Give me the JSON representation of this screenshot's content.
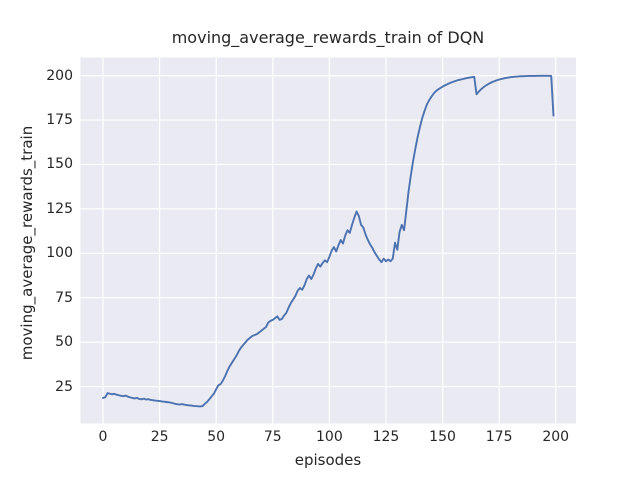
{
  "figure": {
    "title": "moving_average_rewards_train of DQN"
  },
  "colors": {
    "axes_background": "#eaeaf2",
    "grid": "#ffffff",
    "line": "#4c72b0",
    "text": "#262626",
    "figure_background": "#ffffff"
  },
  "chart_data": {
    "type": "line",
    "title": "moving_average_rewards_train of DQN",
    "xlabel": "episodes",
    "ylabel": "moving_average_rewards_train",
    "x_ticks": [
      0,
      25,
      50,
      75,
      100,
      125,
      150,
      175,
      200
    ],
    "y_ticks": [
      25,
      50,
      75,
      100,
      125,
      150,
      175,
      200
    ],
    "xlim": [
      -9.95,
      208.95
    ],
    "ylim": [
      4.2,
      210.2
    ],
    "grid": true,
    "legend_position": "none",
    "x_start": 0,
    "x_step": 1,
    "series": [
      {
        "name": "moving_average_rewards_train",
        "values": [
          18.6,
          19.0,
          21.3,
          21.0,
          20.6,
          20.9,
          20.4,
          20.1,
          19.8,
          19.6,
          19.9,
          19.3,
          18.9,
          18.6,
          18.3,
          18.6,
          18.0,
          17.8,
          18.2,
          17.7,
          17.9,
          17.5,
          17.3,
          17.1,
          17.0,
          16.8,
          16.6,
          16.5,
          16.3,
          16.1,
          15.9,
          15.6,
          15.2,
          15.0,
          14.9,
          15.1,
          14.8,
          14.6,
          14.4,
          14.3,
          14.1,
          14.0,
          13.9,
          13.8,
          14.0,
          15.3,
          16.4,
          17.9,
          19.5,
          21.0,
          23.5,
          25.8,
          26.4,
          28.5,
          31.0,
          34.0,
          36.5,
          38.5,
          40.5,
          42.5,
          45.0,
          47.0,
          48.5,
          50.0,
          51.5,
          52.5,
          53.5,
          54.0,
          54.5,
          55.5,
          56.5,
          57.5,
          58.5,
          61.0,
          62.0,
          62.5,
          63.5,
          64.5,
          62.5,
          63.0,
          65.0,
          66.5,
          69.5,
          72.0,
          74.0,
          76.0,
          79.0,
          80.5,
          79.5,
          82.0,
          85.5,
          87.5,
          85.5,
          88.0,
          91.5,
          94.0,
          92.5,
          94.5,
          96.0,
          95.0,
          98.0,
          101.5,
          103.5,
          101.0,
          104.5,
          107.5,
          105.5,
          110.0,
          113.0,
          111.5,
          116.0,
          120.0,
          123.5,
          121.0,
          116.0,
          114.5,
          110.5,
          107.5,
          105.0,
          103.0,
          100.5,
          98.5,
          96.5,
          95.0,
          97.0,
          95.5,
          96.5,
          95.5,
          97.0,
          106.0,
          102.0,
          112.0,
          116.0,
          113.0,
          124.0,
          135.0,
          144.0,
          152.0,
          159.0,
          165.5,
          171.0,
          176.0,
          180.0,
          183.5,
          186.0,
          188.0,
          189.8,
          191.2,
          192.2,
          193.0,
          193.8,
          194.5,
          195.1,
          195.7,
          196.2,
          196.7,
          197.1,
          197.5,
          197.8,
          198.1,
          198.4,
          198.7,
          198.9,
          199.1,
          199.3,
          189.5,
          191.0,
          192.3,
          193.4,
          194.3,
          195.1,
          195.8,
          196.4,
          196.9,
          197.4,
          197.8,
          198.1,
          198.4,
          198.7,
          198.9,
          199.1,
          199.25,
          199.4,
          199.5,
          199.6,
          199.65,
          199.7,
          199.75,
          199.8,
          199.8,
          199.85,
          199.85,
          199.9,
          199.9,
          199.9,
          199.9,
          199.9,
          199.9,
          199.8,
          177.5
        ]
      }
    ]
  }
}
